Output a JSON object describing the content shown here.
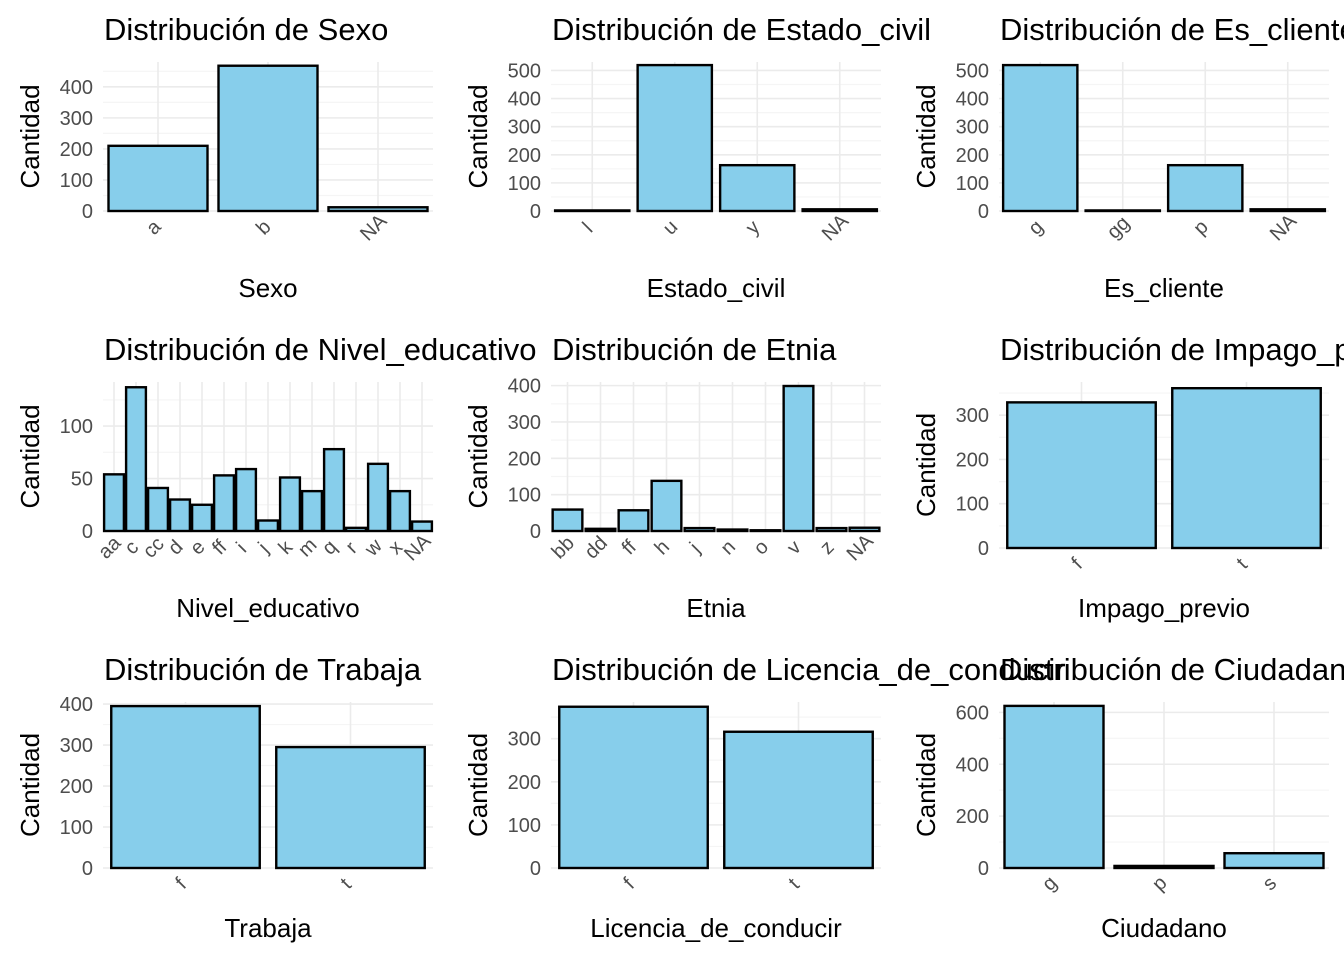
{
  "colors": {
    "bar_fill": "#87CEEB",
    "bar_stroke": "#000000",
    "grid_major": "#EBEBEB",
    "grid_minor": "#F5F5F5",
    "tick_text": "#4D4D4D",
    "text": "#000000"
  },
  "ylabel": "Cantidad",
  "chart_data": [
    {
      "type": "bar",
      "title": "Distribución de Sexo",
      "xlabel": "Sexo",
      "ylabel": "Cantidad",
      "categories": [
        "a",
        "b",
        "NA"
      ],
      "values": [
        210,
        468,
        12
      ],
      "ylim": [
        0,
        480
      ],
      "yticks": [
        0,
        100,
        200,
        300,
        400
      ],
      "minor_step": 50,
      "grid": true
    },
    {
      "type": "bar",
      "title": "Distribución de Estado_civil",
      "xlabel": "Estado_civil",
      "ylabel": "Cantidad",
      "categories": [
        "l",
        "u",
        "y",
        "NA"
      ],
      "values": [
        2,
        519,
        163,
        6
      ],
      "ylim": [
        0,
        530
      ],
      "yticks": [
        0,
        100,
        200,
        300,
        400,
        500
      ],
      "minor_step": 50,
      "grid": true
    },
    {
      "type": "bar",
      "title": "Distribución de Es_cliente",
      "xlabel": "Es_cliente",
      "ylabel": "Cantidad",
      "categories": [
        "g",
        "gg",
        "p",
        "NA"
      ],
      "values": [
        519,
        2,
        163,
        6
      ],
      "ylim": [
        0,
        530
      ],
      "yticks": [
        0,
        100,
        200,
        300,
        400,
        500
      ],
      "minor_step": 50,
      "grid": true
    },
    {
      "type": "bar",
      "title": "Distribución de Nivel_educativo",
      "xlabel": "Nivel_educativo",
      "ylabel": "Cantidad",
      "categories": [
        "aa",
        "c",
        "cc",
        "d",
        "e",
        "ff",
        "i",
        "j",
        "k",
        "m",
        "q",
        "r",
        "w",
        "x",
        "NA"
      ],
      "values": [
        54,
        137,
        41,
        30,
        25,
        53,
        59,
        10,
        51,
        38,
        78,
        3,
        64,
        38,
        9
      ],
      "ylim": [
        0,
        142
      ],
      "yticks": [
        0,
        50,
        100
      ],
      "minor_step": 25,
      "grid": true
    },
    {
      "type": "bar",
      "title": "Distribución de Etnia",
      "xlabel": "Etnia",
      "ylabel": "Cantidad",
      "categories": [
        "bb",
        "dd",
        "ff",
        "h",
        "j",
        "n",
        "o",
        "v",
        "z",
        "NA"
      ],
      "values": [
        59,
        6,
        57,
        138,
        8,
        4,
        2,
        399,
        8,
        9
      ],
      "ylim": [
        0,
        410
      ],
      "yticks": [
        0,
        100,
        200,
        300,
        400
      ],
      "minor_step": 50,
      "grid": true
    },
    {
      "type": "bar",
      "title": "Distribución de Impago_previo",
      "xlabel": "Impago_previo",
      "ylabel": "Cantidad",
      "categories": [
        "f",
        "t"
      ],
      "values": [
        329,
        361
      ],
      "ylim": [
        0,
        375
      ],
      "yticks": [
        0,
        100,
        200,
        300
      ],
      "minor_step": 50,
      "grid": true
    },
    {
      "type": "bar",
      "title": "Distribución de Trabaja",
      "xlabel": "Trabaja",
      "ylabel": "Cantidad",
      "categories": [
        "f",
        "t"
      ],
      "values": [
        395,
        295
      ],
      "ylim": [
        0,
        405
      ],
      "yticks": [
        0,
        100,
        200,
        300,
        400
      ],
      "minor_step": 50,
      "grid": true
    },
    {
      "type": "bar",
      "title": "Distribución de Licencia_de_conducir",
      "xlabel": "Licencia_de_conducir",
      "ylabel": "Cantidad",
      "categories": [
        "f",
        "t"
      ],
      "values": [
        374,
        316
      ],
      "ylim": [
        0,
        385
      ],
      "yticks": [
        0,
        100,
        200,
        300
      ],
      "minor_step": 50,
      "grid": true
    },
    {
      "type": "bar",
      "title": "Distribución de Ciudadano",
      "xlabel": "Ciudadano",
      "ylabel": "Cantidad",
      "categories": [
        "g",
        "p",
        "s"
      ],
      "values": [
        625,
        8,
        57
      ],
      "ylim": [
        0,
        640
      ],
      "yticks": [
        0,
        200,
        400,
        600
      ],
      "minor_step": 100,
      "grid": true
    }
  ]
}
